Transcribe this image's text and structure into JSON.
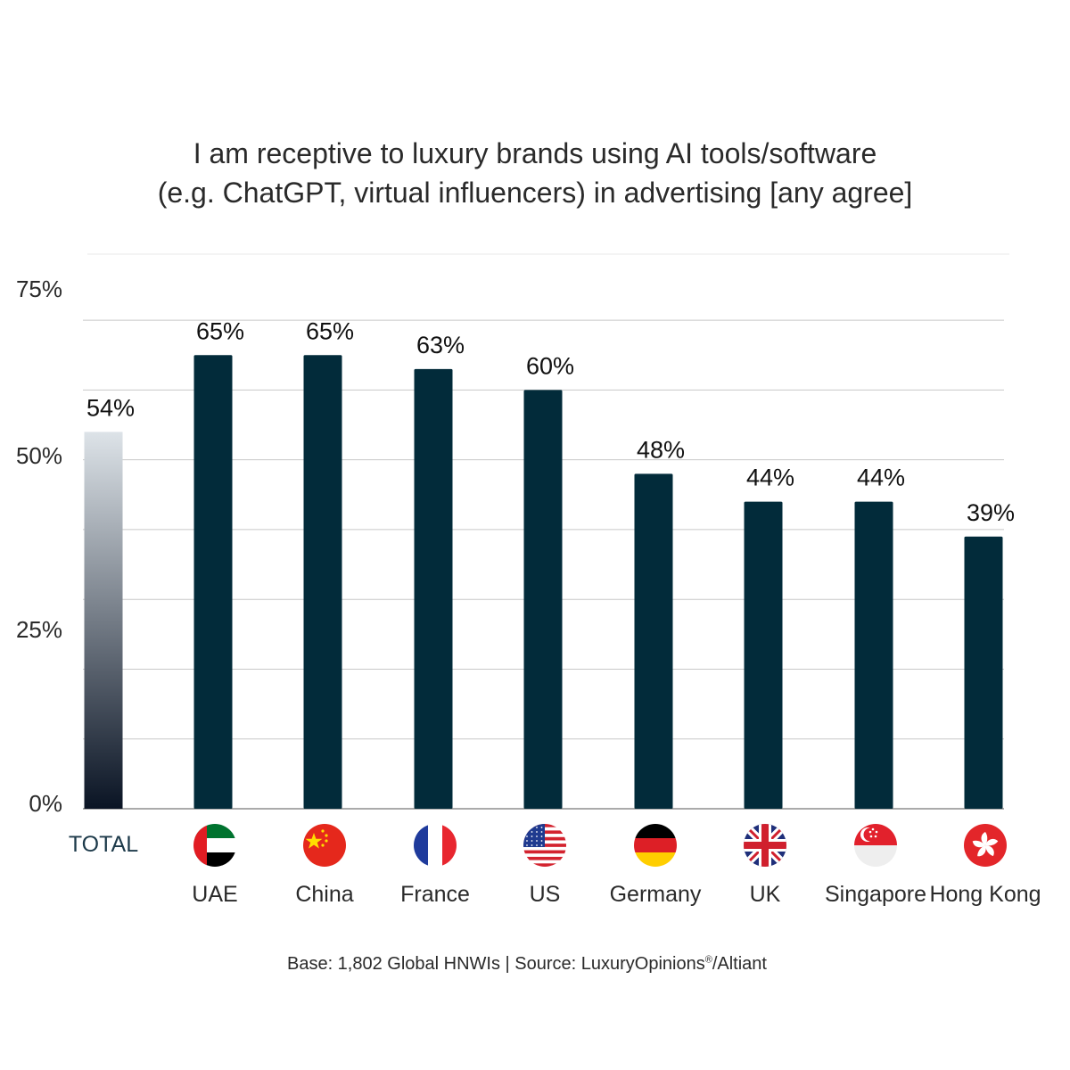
{
  "chart_data": {
    "type": "bar",
    "title": [
      "I am receptive to luxury brands using AI tools/software",
      "(e.g. ChatGPT, virtual influencers) in advertising [any agree]"
    ],
    "categories": [
      "TOTAL",
      "UAE",
      "China",
      "France",
      "US",
      "Germany",
      "UK",
      "Singapore",
      "Hong Kong"
    ],
    "values": [
      54,
      65,
      65,
      63,
      60,
      48,
      44,
      44,
      39
    ],
    "value_labels": [
      "54%",
      "65%",
      "65%",
      "63%",
      "60%",
      "48%",
      "44%",
      "44%",
      "39%"
    ],
    "ylim": [
      0,
      75
    ],
    "yticks": [
      0,
      25,
      50,
      75
    ],
    "ytick_labels": [
      "0%",
      "25%",
      "50%",
      "75%"
    ],
    "gridlines": [
      10,
      20,
      30,
      40,
      50,
      60,
      70
    ],
    "grid": true,
    "legend": "none",
    "flags": [
      "",
      "uae-flag-icon",
      "china-flag-icon",
      "france-flag-icon",
      "us-flag-icon",
      "germany-flag-icon",
      "uk-flag-icon",
      "singapore-flag-icon",
      "hong-kong-flag-icon"
    ],
    "colors": {
      "bar": "#022b3a",
      "total_top": "#dde3e8",
      "total_bottom": "#0a1424",
      "total_label": "#1d3a4a",
      "grid": "#c8c8c8",
      "axis": "#555555"
    }
  },
  "footer": {
    "base": "Base: 1,802 Global HNWIs | Source: LuxuryOpinions",
    "reg": "®",
    "source_tail": "/Altiant"
  }
}
